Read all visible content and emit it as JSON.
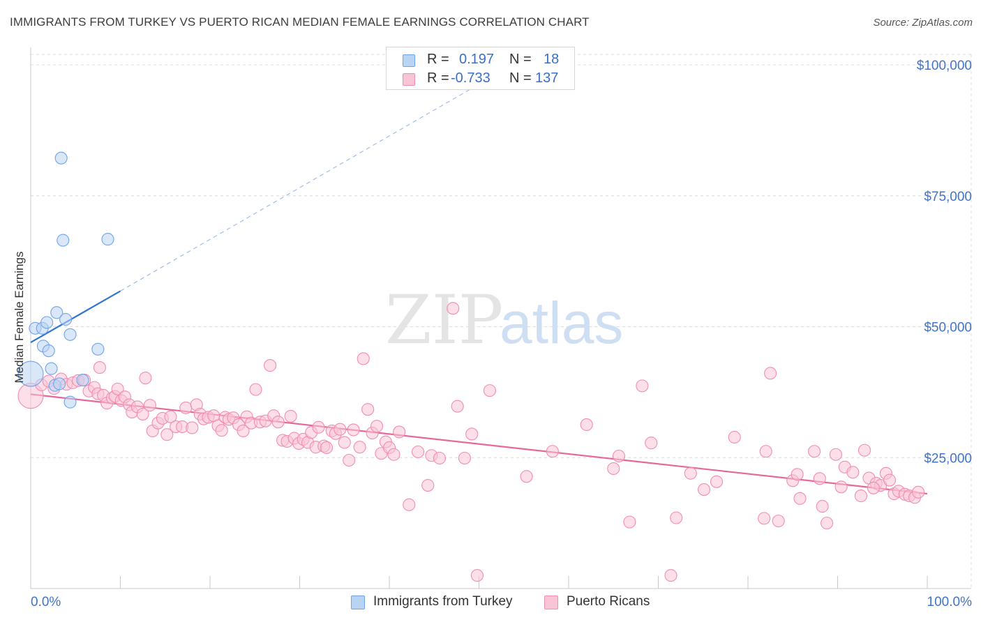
{
  "header": {
    "title": "IMMIGRANTS FROM TURKEY VS PUERTO RICAN MEDIAN FEMALE EARNINGS CORRELATION CHART",
    "source": "Source: ZipAtlas.com"
  },
  "watermark": {
    "zip": "ZIP",
    "atlas": "atlas"
  },
  "legend": {
    "rows": [
      {
        "r_label": "R =",
        "r_value": "0.197",
        "n_label": "N =",
        "n_value": "18",
        "color": "#6fa3e8"
      },
      {
        "r_label": "R =",
        "r_value": "-0.733",
        "n_label": "N =",
        "n_value": "137",
        "color": "#f49ab8"
      }
    ]
  },
  "bottom_legend": [
    {
      "label": "Immigrants from Turkey",
      "color": "#6fa3e8"
    },
    {
      "label": "Puerto Ricans",
      "color": "#f49ab8"
    }
  ],
  "colors": {
    "blue_fill": "#b9d3f3",
    "blue_stroke": "#6fa3e8",
    "blue_line": "#2f74d0",
    "pink_fill": "#f9c4d6",
    "pink_stroke": "#f08db0",
    "pink_line": "#e8679a",
    "axis_text": "#3f74c9",
    "grid": "#dcdcdc"
  },
  "chart_data": {
    "type": "scatter",
    "title": "IMMIGRANTS FROM TURKEY VS PUERTO RICAN MEDIAN FEMALE EARNINGS CORRELATION CHART",
    "xlabel": "",
    "ylabel": "Median Female Earnings",
    "x_tick_labels": [
      "0.0%",
      "100.0%"
    ],
    "y_tick_labels": [
      "$25,000",
      "$50,000",
      "$75,000",
      "$100,000"
    ],
    "y_ticks": [
      25000,
      50000,
      75000,
      100000
    ],
    "xlim": [
      0,
      100
    ],
    "ylim": [
      0,
      102000
    ],
    "grid": true,
    "legend_placement": "top-center",
    "series": [
      {
        "name": "Immigrants from Turkey",
        "r": 0.197,
        "n": 18,
        "trend": {
          "x0": 0,
          "y0": 47000,
          "x1": 10,
          "y1": 56800,
          "dashed_to_x": 50,
          "dashed_to_y": 96300
        },
        "points": [
          [
            0,
            41000
          ],
          [
            0.5,
            49700
          ],
          [
            1.3,
            49700
          ],
          [
            1.8,
            50800
          ],
          [
            1.4,
            46300
          ],
          [
            2.0,
            45400
          ],
          [
            2.3,
            42000
          ],
          [
            2.7,
            38800
          ],
          [
            2.9,
            52700
          ],
          [
            3.4,
            82200
          ],
          [
            3.6,
            66500
          ],
          [
            3.9,
            51400
          ],
          [
            4.4,
            48500
          ],
          [
            4.4,
            35600
          ],
          [
            5.8,
            39800
          ],
          [
            7.5,
            45700
          ],
          [
            8.6,
            66700
          ],
          [
            3.2,
            39100
          ]
        ]
      },
      {
        "name": "Puerto Ricans",
        "r": -0.733,
        "n": 137,
        "trend": {
          "x0": 0,
          "y0": 37100,
          "x1": 100,
          "y1": 18100
        },
        "points": [
          [
            0,
            36800
          ],
          [
            1.2,
            38900
          ],
          [
            2.0,
            39600
          ],
          [
            2.6,
            38200
          ],
          [
            3.4,
            40000
          ],
          [
            4.0,
            39000
          ],
          [
            4.7,
            39300
          ],
          [
            5.3,
            39700
          ],
          [
            6.0,
            39800
          ],
          [
            6.5,
            37700
          ],
          [
            7.1,
            38400
          ],
          [
            7.5,
            37200
          ],
          [
            7.7,
            42200
          ],
          [
            8.1,
            36900
          ],
          [
            8.5,
            35400
          ],
          [
            9.1,
            36400
          ],
          [
            9.4,
            36700
          ],
          [
            9.7,
            38100
          ],
          [
            10.1,
            35900
          ],
          [
            10.5,
            36600
          ],
          [
            11.0,
            35100
          ],
          [
            11.3,
            33700
          ],
          [
            11.9,
            34700
          ],
          [
            12.5,
            33300
          ],
          [
            12.8,
            40200
          ],
          [
            13.3,
            35000
          ],
          [
            13.6,
            30100
          ],
          [
            14.2,
            31600
          ],
          [
            14.7,
            32500
          ],
          [
            15.2,
            29400
          ],
          [
            15.6,
            32800
          ],
          [
            16.2,
            30900
          ],
          [
            16.9,
            30900
          ],
          [
            17.3,
            34500
          ],
          [
            18.0,
            30700
          ],
          [
            18.5,
            35100
          ],
          [
            18.9,
            33300
          ],
          [
            19.3,
            32400
          ],
          [
            19.8,
            32700
          ],
          [
            20.4,
            33000
          ],
          [
            20.9,
            31100
          ],
          [
            21.3,
            30200
          ],
          [
            21.7,
            32700
          ],
          [
            22.1,
            32300
          ],
          [
            22.6,
            32600
          ],
          [
            23.2,
            31300
          ],
          [
            23.7,
            30100
          ],
          [
            24.1,
            32800
          ],
          [
            24.6,
            31600
          ],
          [
            25.1,
            38000
          ],
          [
            25.6,
            31800
          ],
          [
            26.2,
            32000
          ],
          [
            26.7,
            42600
          ],
          [
            27.1,
            33000
          ],
          [
            27.6,
            31800
          ],
          [
            28.1,
            28300
          ],
          [
            28.6,
            28100
          ],
          [
            29.0,
            32900
          ],
          [
            29.4,
            28700
          ],
          [
            29.9,
            27700
          ],
          [
            30.4,
            28500
          ],
          [
            30.9,
            27900
          ],
          [
            31.3,
            29800
          ],
          [
            31.8,
            27000
          ],
          [
            32.1,
            30800
          ],
          [
            32.7,
            27200
          ],
          [
            33.0,
            26900
          ],
          [
            33.6,
            30100
          ],
          [
            34.0,
            29600
          ],
          [
            34.5,
            30400
          ],
          [
            35.0,
            27900
          ],
          [
            35.5,
            24500
          ],
          [
            36.0,
            30300
          ],
          [
            36.7,
            27000
          ],
          [
            37.1,
            43900
          ],
          [
            37.6,
            34200
          ],
          [
            38.1,
            29700
          ],
          [
            38.6,
            31000
          ],
          [
            39.1,
            25800
          ],
          [
            39.6,
            28000
          ],
          [
            40.0,
            26900
          ],
          [
            40.5,
            25600
          ],
          [
            41.1,
            29900
          ],
          [
            42.2,
            16000
          ],
          [
            43.2,
            26100
          ],
          [
            44.3,
            19700
          ],
          [
            44.7,
            25400
          ],
          [
            45.6,
            24900
          ],
          [
            47.1,
            53500
          ],
          [
            47.6,
            34800
          ],
          [
            48.4,
            24900
          ],
          [
            49.2,
            29500
          ],
          [
            49.8,
            2500
          ],
          [
            51.2,
            37800
          ],
          [
            55.3,
            21400
          ],
          [
            58.2,
            26200
          ],
          [
            62.0,
            31300
          ],
          [
            65.0,
            22900
          ],
          [
            65.6,
            25300
          ],
          [
            66.8,
            12700
          ],
          [
            68.2,
            38700
          ],
          [
            69.2,
            27800
          ],
          [
            71.4,
            2500
          ],
          [
            72.0,
            13500
          ],
          [
            73.6,
            22000
          ],
          [
            75.1,
            18900
          ],
          [
            76.5,
            20400
          ],
          [
            78.5,
            28900
          ],
          [
            81.8,
            13400
          ],
          [
            82.0,
            26200
          ],
          [
            82.5,
            41100
          ],
          [
            83.4,
            12900
          ],
          [
            85.0,
            20600
          ],
          [
            85.5,
            21800
          ],
          [
            85.8,
            17200
          ],
          [
            87.4,
            26200
          ],
          [
            88.0,
            21000
          ],
          [
            88.3,
            15700
          ],
          [
            88.8,
            12500
          ],
          [
            89.8,
            25600
          ],
          [
            90.4,
            19400
          ],
          [
            90.8,
            23200
          ],
          [
            91.7,
            22200
          ],
          [
            92.6,
            17700
          ],
          [
            93.0,
            26400
          ],
          [
            93.5,
            21100
          ],
          [
            94.3,
            20100
          ],
          [
            94.8,
            19700
          ],
          [
            95.4,
            22000
          ],
          [
            95.8,
            20700
          ],
          [
            96.3,
            18100
          ],
          [
            96.8,
            18600
          ],
          [
            97.5,
            18000
          ],
          [
            98.0,
            17700
          ],
          [
            98.6,
            17400
          ],
          [
            99.0,
            18400
          ],
          [
            94.0,
            19200
          ]
        ]
      }
    ]
  }
}
